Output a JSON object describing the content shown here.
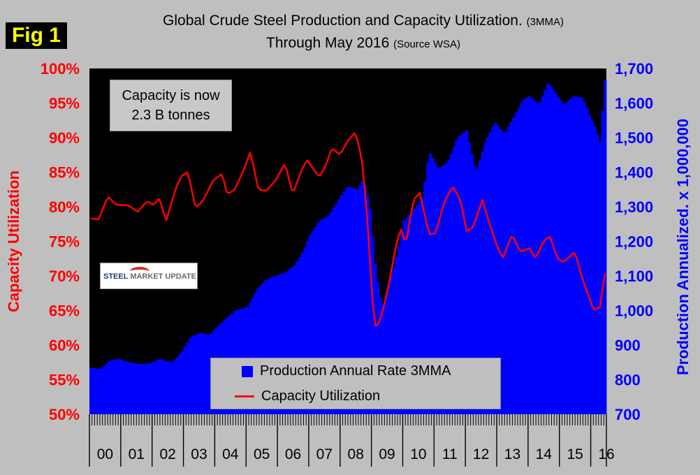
{
  "figure_label": "Fig 1",
  "title_main": "Global Crude Steel Production and Capacity Utilization.",
  "title_main_suffix": "(3MMA)",
  "title_sub": "Through May 2016",
  "title_sub_suffix": "(Source WSA)",
  "annotation": {
    "line1": "Capacity is now",
    "line2": "2.3 B tonnes"
  },
  "logo": {
    "word1": "STEEL",
    "word2": "MARKET UPDATE"
  },
  "colors": {
    "production": "#0000ff",
    "utilization": "#ff0000",
    "plot_bg": "#000000",
    "axis_left": "#ff0000",
    "axis_right": "#0000ff"
  },
  "chart_data": {
    "type": "bar+line",
    "title": "Global Crude Steel Production and Capacity Utilization. (3MMA) Through May 2016 (Source WSA)",
    "x_categories": [
      "00",
      "01",
      "02",
      "03",
      "04",
      "05",
      "06",
      "07",
      "08",
      "09",
      "10",
      "11",
      "12",
      "13",
      "14",
      "15",
      "16"
    ],
    "y_left": {
      "label": "Capacity Utilization",
      "min": 50,
      "max": 100,
      "ticks": [
        "50%",
        "55%",
        "60%",
        "65%",
        "70%",
        "75%",
        "80%",
        "85%",
        "90%",
        "95%",
        "100%"
      ]
    },
    "y_right": {
      "label": "Production Annualized. x 1,000,000",
      "min": 700,
      "max": 1700,
      "ticks": [
        "700",
        "800",
        "900",
        "1,000",
        "1,100",
        "1,200",
        "1,300",
        "1,400",
        "1,500",
        "1,600",
        "1,700"
      ]
    },
    "series": [
      {
        "name": "Production Annual Rate 3MMA",
        "kind": "bar",
        "axis": "right",
        "anchors": [
          [
            2000.0,
            835
          ],
          [
            2000.3,
            830
          ],
          [
            2000.6,
            855
          ],
          [
            2000.9,
            860
          ],
          [
            2001.2,
            850
          ],
          [
            2001.6,
            845
          ],
          [
            2001.9,
            848
          ],
          [
            2002.2,
            860
          ],
          [
            2002.6,
            850
          ],
          [
            2002.9,
            880
          ],
          [
            2003.2,
            925
          ],
          [
            2003.5,
            935
          ],
          [
            2003.8,
            930
          ],
          [
            2004.0,
            950
          ],
          [
            2004.3,
            975
          ],
          [
            2004.6,
            1000
          ],
          [
            2005.0,
            1010
          ],
          [
            2005.3,
            1060
          ],
          [
            2005.6,
            1090
          ],
          [
            2005.9,
            1100
          ],
          [
            2006.2,
            1110
          ],
          [
            2006.5,
            1130
          ],
          [
            2006.8,
            1175
          ],
          [
            2007.0,
            1220
          ],
          [
            2007.3,
            1260
          ],
          [
            2007.6,
            1275
          ],
          [
            2007.9,
            1320
          ],
          [
            2008.2,
            1360
          ],
          [
            2008.5,
            1350
          ],
          [
            2008.7,
            1380
          ],
          [
            2008.9,
            1310
          ],
          [
            2009.1,
            1120
          ],
          [
            2009.3,
            1010
          ],
          [
            2009.5,
            1070
          ],
          [
            2009.8,
            1170
          ],
          [
            2010.0,
            1260
          ],
          [
            2010.3,
            1290
          ],
          [
            2010.6,
            1330
          ],
          [
            2010.8,
            1460
          ],
          [
            2011.1,
            1410
          ],
          [
            2011.4,
            1430
          ],
          [
            2011.7,
            1500
          ],
          [
            2012.0,
            1520
          ],
          [
            2012.3,
            1400
          ],
          [
            2012.6,
            1490
          ],
          [
            2012.9,
            1545
          ],
          [
            2013.2,
            1510
          ],
          [
            2013.5,
            1560
          ],
          [
            2013.8,
            1610
          ],
          [
            2014.0,
            1620
          ],
          [
            2014.3,
            1595
          ],
          [
            2014.6,
            1660
          ],
          [
            2014.9,
            1620
          ],
          [
            2015.1,
            1595
          ],
          [
            2015.4,
            1620
          ],
          [
            2015.7,
            1615
          ],
          [
            2015.9,
            1570
          ],
          [
            2016.1,
            1530
          ],
          [
            2016.25,
            1490
          ],
          [
            2016.42,
            1670
          ]
        ]
      },
      {
        "name": "Capacity Utilization",
        "kind": "line",
        "axis": "left",
        "anchors": [
          [
            2000.0,
            78.3
          ],
          [
            2000.25,
            78.2
          ],
          [
            2000.55,
            81.5
          ],
          [
            2000.8,
            80.3
          ],
          [
            2001.2,
            80.2
          ],
          [
            2001.5,
            79.3
          ],
          [
            2001.8,
            80.8
          ],
          [
            2002.0,
            80.3
          ],
          [
            2002.2,
            81.3
          ],
          [
            2002.4,
            77.8
          ],
          [
            2002.7,
            82.5
          ],
          [
            2002.9,
            84.5
          ],
          [
            2003.1,
            85.0
          ],
          [
            2003.35,
            79.8
          ],
          [
            2003.6,
            81.0
          ],
          [
            2003.9,
            83.8
          ],
          [
            2004.2,
            84.8
          ],
          [
            2004.35,
            81.8
          ],
          [
            2004.6,
            82.5
          ],
          [
            2004.9,
            85.5
          ],
          [
            2005.1,
            88.0
          ],
          [
            2005.35,
            82.5
          ],
          [
            2005.6,
            82.3
          ],
          [
            2005.9,
            83.8
          ],
          [
            2006.2,
            86.3
          ],
          [
            2006.45,
            81.8
          ],
          [
            2006.7,
            85.0
          ],
          [
            2006.9,
            86.8
          ],
          [
            2007.1,
            85.5
          ],
          [
            2007.3,
            84.3
          ],
          [
            2007.5,
            86.0
          ],
          [
            2007.7,
            88.5
          ],
          [
            2007.95,
            87.5
          ],
          [
            2008.2,
            89.5
          ],
          [
            2008.45,
            90.8
          ],
          [
            2008.65,
            87.0
          ],
          [
            2008.8,
            80.0
          ],
          [
            2009.0,
            66.0
          ],
          [
            2009.1,
            62.2
          ],
          [
            2009.3,
            64.5
          ],
          [
            2009.5,
            68.5
          ],
          [
            2009.75,
            74.5
          ],
          [
            2009.9,
            77.0
          ],
          [
            2010.05,
            74.5
          ],
          [
            2010.3,
            81.0
          ],
          [
            2010.5,
            82.0
          ],
          [
            2010.8,
            76.0
          ],
          [
            2011.0,
            76.2
          ],
          [
            2011.3,
            80.8
          ],
          [
            2011.55,
            83.0
          ],
          [
            2011.8,
            81.0
          ],
          [
            2012.0,
            76.5
          ],
          [
            2012.2,
            77.0
          ],
          [
            2012.5,
            81.0
          ],
          [
            2012.7,
            78.0
          ],
          [
            2012.95,
            74.5
          ],
          [
            2013.15,
            72.5
          ],
          [
            2013.45,
            76.0
          ],
          [
            2013.7,
            73.5
          ],
          [
            2014.0,
            74.0
          ],
          [
            2014.2,
            72.5
          ],
          [
            2014.45,
            75.0
          ],
          [
            2014.65,
            75.8
          ],
          [
            2014.9,
            72.5
          ],
          [
            2015.1,
            72.0
          ],
          [
            2015.45,
            73.5
          ],
          [
            2015.7,
            69.5
          ],
          [
            2015.9,
            67.0
          ],
          [
            2016.05,
            65.0
          ],
          [
            2016.25,
            65.5
          ],
          [
            2016.42,
            70.5
          ]
        ]
      }
    ],
    "legend": [
      "Production Annual Rate 3MMA",
      "Capacity Utilization"
    ],
    "legend_position": "bottom-center"
  }
}
